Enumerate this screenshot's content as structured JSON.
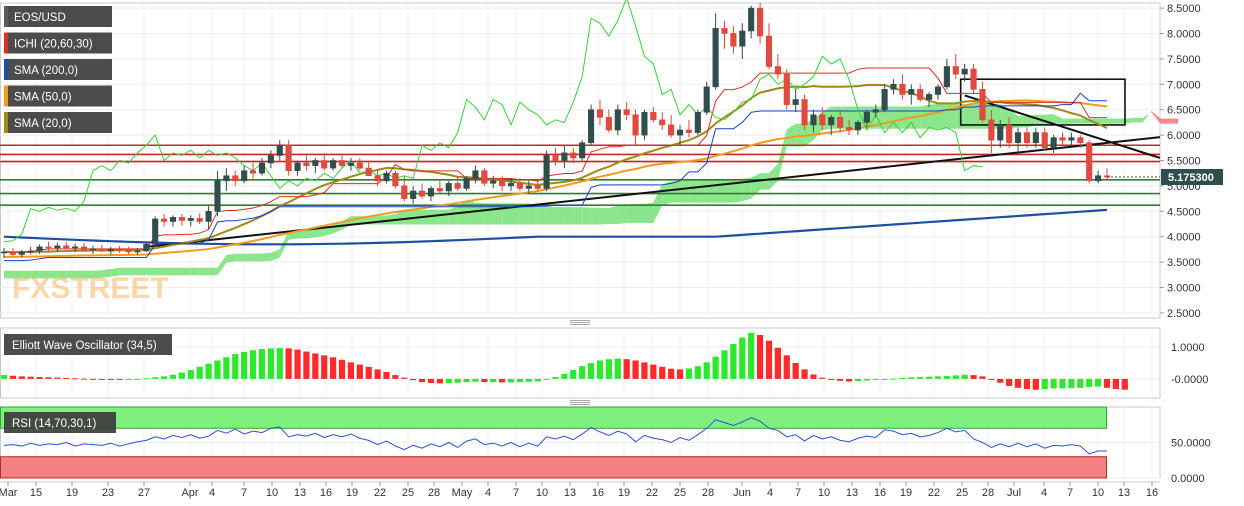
{
  "chart_data": {
    "type": "candlestick",
    "symbol": "EOS/USD",
    "x_ticks": [
      "Mar",
      "15",
      "19",
      "23",
      "27",
      "Apr",
      "4",
      "7",
      "10",
      "13",
      "16",
      "19",
      "22",
      "25",
      "28",
      "May",
      "4",
      "7",
      "10",
      "13",
      "16",
      "19",
      "22",
      "25",
      "28",
      "Jun",
      "4",
      "7",
      "10",
      "13",
      "16",
      "19",
      "22",
      "25",
      "28",
      "Jul",
      "4",
      "7",
      "10",
      "13",
      "16"
    ],
    "price_axis": {
      "ylim": [
        2.4,
        8.6
      ],
      "ticks": [
        "8.5000",
        "8.0000",
        "7.5000",
        "7.0000",
        "6.5000",
        "6.0000",
        "5.5000",
        "5.0000",
        "4.5000",
        "4.0000",
        "3.5000",
        "3.0000",
        "2.5000"
      ],
      "current_price": "5.175300"
    },
    "legend": [
      {
        "label": "EOS/USD",
        "color": "#5a5a5a"
      },
      {
        "label": "ICHI (20,60,30)",
        "color": "#d93025"
      },
      {
        "label": "SMA (200,0)",
        "color": "#1f4fa0"
      },
      {
        "label": "SMA (50,0)",
        "color": "#f39a1e"
      },
      {
        "label": "SMA (20,0)",
        "color": "#a08a16"
      }
    ],
    "watermark": "FXSTREET",
    "candles_ohlc": [
      [
        3.68,
        3.78,
        3.58,
        3.7
      ],
      [
        3.7,
        3.78,
        3.62,
        3.65
      ],
      [
        3.65,
        3.74,
        3.6,
        3.7
      ],
      [
        3.7,
        3.8,
        3.65,
        3.72
      ],
      [
        3.72,
        3.85,
        3.66,
        3.8
      ],
      [
        3.8,
        3.9,
        3.72,
        3.78
      ],
      [
        3.78,
        3.88,
        3.7,
        3.82
      ],
      [
        3.82,
        3.9,
        3.76,
        3.78
      ],
      [
        3.78,
        3.86,
        3.7,
        3.8
      ],
      [
        3.8,
        3.88,
        3.72,
        3.74
      ],
      [
        3.74,
        3.82,
        3.66,
        3.76
      ],
      [
        3.76,
        3.84,
        3.7,
        3.72
      ],
      [
        3.72,
        3.8,
        3.65,
        3.75
      ],
      [
        3.75,
        3.82,
        3.68,
        3.74
      ],
      [
        3.74,
        3.8,
        3.66,
        3.7
      ],
      [
        3.7,
        3.78,
        3.64,
        3.72
      ],
      [
        3.72,
        3.9,
        3.7,
        3.85
      ],
      [
        3.85,
        4.4,
        3.8,
        4.35
      ],
      [
        4.35,
        4.45,
        4.2,
        4.3
      ],
      [
        4.3,
        4.42,
        4.2,
        4.38
      ],
      [
        4.38,
        4.45,
        4.22,
        4.32
      ],
      [
        4.32,
        4.42,
        4.2,
        4.36
      ],
      [
        4.36,
        4.46,
        4.25,
        4.3
      ],
      [
        4.3,
        4.6,
        4.15,
        4.5
      ],
      [
        4.5,
        5.3,
        4.4,
        5.1
      ],
      [
        5.1,
        5.35,
        4.9,
        5.2
      ],
      [
        5.2,
        5.3,
        5.0,
        5.1
      ],
      [
        5.1,
        5.4,
        5.05,
        5.3
      ],
      [
        5.3,
        5.45,
        5.1,
        5.25
      ],
      [
        5.25,
        5.55,
        5.2,
        5.45
      ],
      [
        5.45,
        5.7,
        5.35,
        5.6
      ],
      [
        5.6,
        5.9,
        5.5,
        5.8
      ],
      [
        5.8,
        5.9,
        5.2,
        5.3
      ],
      [
        5.3,
        5.5,
        5.2,
        5.45
      ],
      [
        5.45,
        5.6,
        5.3,
        5.4
      ],
      [
        5.4,
        5.55,
        5.25,
        5.5
      ],
      [
        5.5,
        5.6,
        5.3,
        5.35
      ],
      [
        5.35,
        5.55,
        5.3,
        5.5
      ],
      [
        5.5,
        5.6,
        5.35,
        5.4
      ],
      [
        5.4,
        5.55,
        5.3,
        5.45
      ],
      [
        5.45,
        5.55,
        5.3,
        5.35
      ],
      [
        5.35,
        5.5,
        5.2,
        5.2
      ],
      [
        5.2,
        5.3,
        5.0,
        5.1
      ],
      [
        5.1,
        5.3,
        5.05,
        5.25
      ],
      [
        5.25,
        5.3,
        4.95,
        5.0
      ],
      [
        5.0,
        5.2,
        4.7,
        4.75
      ],
      [
        4.75,
        5.0,
        4.65,
        4.9
      ],
      [
        4.9,
        5.05,
        4.75,
        4.8
      ],
      [
        4.8,
        5.0,
        4.7,
        4.95
      ],
      [
        4.95,
        5.1,
        4.85,
        4.9
      ],
      [
        4.9,
        5.1,
        4.8,
        5.05
      ],
      [
        5.05,
        5.2,
        4.9,
        4.95
      ],
      [
        4.95,
        5.2,
        4.9,
        5.15
      ],
      [
        5.15,
        5.4,
        5.05,
        5.3
      ],
      [
        5.3,
        5.35,
        5.0,
        5.05
      ],
      [
        5.05,
        5.2,
        4.95,
        5.1
      ],
      [
        5.1,
        5.2,
        4.9,
        5.0
      ],
      [
        5.0,
        5.15,
        4.9,
        5.05
      ],
      [
        5.05,
        5.15,
        4.9,
        4.95
      ],
      [
        4.95,
        5.1,
        4.85,
        5.0
      ],
      [
        5.0,
        5.1,
        4.9,
        4.95
      ],
      [
        4.95,
        5.7,
        4.9,
        5.6
      ],
      [
        5.6,
        5.75,
        5.4,
        5.5
      ],
      [
        5.5,
        5.8,
        5.35,
        5.65
      ],
      [
        5.65,
        5.75,
        5.45,
        5.55
      ],
      [
        5.55,
        5.9,
        5.5,
        5.85
      ],
      [
        5.85,
        6.6,
        5.8,
        6.5
      ],
      [
        6.5,
        6.7,
        6.2,
        6.35
      ],
      [
        6.35,
        6.5,
        6.05,
        6.1
      ],
      [
        6.1,
        6.6,
        6.0,
        6.5
      ],
      [
        6.5,
        6.65,
        6.3,
        6.4
      ],
      [
        6.4,
        6.5,
        5.8,
        6.0
      ],
      [
        6.0,
        6.5,
        5.9,
        6.45
      ],
      [
        6.45,
        6.55,
        6.25,
        6.3
      ],
      [
        6.3,
        6.45,
        6.1,
        6.2
      ],
      [
        6.2,
        6.4,
        5.95,
        6.0
      ],
      [
        6.0,
        6.2,
        5.8,
        6.1
      ],
      [
        6.1,
        6.3,
        5.95,
        6.05
      ],
      [
        6.05,
        6.5,
        6.0,
        6.45
      ],
      [
        6.45,
        7.05,
        6.4,
        6.95
      ],
      [
        6.95,
        8.4,
        6.9,
        8.1
      ],
      [
        8.1,
        8.25,
        7.7,
        8.0
      ],
      [
        8.0,
        8.15,
        7.6,
        7.75
      ],
      [
        7.75,
        8.2,
        7.5,
        8.05
      ],
      [
        8.05,
        8.55,
        7.9,
        8.5
      ],
      [
        8.5,
        8.6,
        7.8,
        7.95
      ],
      [
        7.95,
        8.2,
        7.3,
        7.35
      ],
      [
        7.35,
        7.6,
        7.1,
        7.2
      ],
      [
        7.2,
        7.3,
        6.5,
        6.6
      ],
      [
        6.6,
        6.9,
        6.45,
        6.7
      ],
      [
        6.7,
        6.8,
        6.1,
        6.2
      ],
      [
        6.2,
        6.5,
        6.05,
        6.4
      ],
      [
        6.4,
        6.55,
        6.1,
        6.2
      ],
      [
        6.2,
        6.4,
        6.0,
        6.35
      ],
      [
        6.35,
        6.5,
        6.05,
        6.15
      ],
      [
        6.15,
        6.3,
        6.0,
        6.1
      ],
      [
        6.1,
        6.3,
        6.0,
        6.25
      ],
      [
        6.25,
        6.5,
        6.15,
        6.45
      ],
      [
        6.45,
        6.6,
        6.35,
        6.5
      ],
      [
        6.5,
        7.0,
        6.45,
        6.9
      ],
      [
        6.9,
        7.1,
        6.8,
        7.0
      ],
      [
        7.0,
        7.2,
        6.7,
        6.8
      ],
      [
        6.8,
        7.0,
        6.6,
        6.9
      ],
      [
        6.9,
        7.0,
        6.65,
        6.7
      ],
      [
        6.7,
        6.85,
        6.55,
        6.8
      ],
      [
        6.8,
        7.0,
        6.7,
        6.95
      ],
      [
        6.95,
        7.5,
        6.9,
        7.35
      ],
      [
        7.35,
        7.6,
        7.1,
        7.2
      ],
      [
        7.2,
        7.4,
        7.05,
        7.3
      ],
      [
        7.3,
        7.4,
        6.8,
        6.9
      ],
      [
        6.9,
        7.05,
        6.25,
        6.3
      ],
      [
        6.3,
        6.5,
        5.65,
        5.9
      ],
      [
        5.9,
        6.3,
        5.75,
        6.2
      ],
      [
        6.2,
        6.35,
        5.75,
        5.85
      ],
      [
        5.85,
        6.15,
        5.65,
        6.05
      ],
      [
        6.05,
        6.15,
        5.75,
        5.85
      ],
      [
        5.85,
        6.15,
        5.75,
        6.05
      ],
      [
        6.05,
        6.15,
        5.7,
        5.75
      ],
      [
        5.75,
        6.0,
        5.65,
        5.95
      ],
      [
        5.95,
        6.05,
        5.8,
        5.9
      ],
      [
        5.9,
        6.05,
        5.8,
        5.95
      ],
      [
        5.95,
        6.0,
        5.75,
        5.85
      ],
      [
        5.85,
        5.9,
        5.05,
        5.1
      ],
      [
        5.1,
        5.3,
        5.05,
        5.2
      ],
      [
        5.2,
        5.35,
        5.1,
        5.175
      ]
    ],
    "horizontal_levels": [
      5.8,
      5.62,
      5.48,
      5.12,
      4.85,
      4.62
    ],
    "indicators": [
      {
        "name": "Elliott Wave Oscillator (34,5)",
        "ticks": [
          "1.0000",
          "-0.0000"
        ],
        "ylim": [
          -0.6,
          1.6
        ],
        "values": [
          0.12,
          0.1,
          0.08,
          0.07,
          0.06,
          0.05,
          0.04,
          0.03,
          0.02,
          0.01,
          0.0,
          -0.01,
          -0.02,
          -0.03,
          -0.02,
          -0.01,
          0.02,
          0.05,
          0.08,
          0.13,
          0.2,
          0.28,
          0.38,
          0.48,
          0.58,
          0.68,
          0.78,
          0.85,
          0.9,
          0.94,
          0.96,
          0.97,
          0.96,
          0.92,
          0.86,
          0.8,
          0.74,
          0.68,
          0.6,
          0.52,
          0.45,
          0.38,
          0.3,
          0.22,
          0.12,
          0.04,
          -0.04,
          -0.1,
          -0.13,
          -0.14,
          -0.13,
          -0.12,
          -0.1,
          -0.09,
          -0.1,
          -0.1,
          -0.11,
          -0.11,
          -0.1,
          -0.09,
          -0.08,
          -0.02,
          0.06,
          0.16,
          0.28,
          0.4,
          0.5,
          0.58,
          0.62,
          0.64,
          0.62,
          0.58,
          0.52,
          0.45,
          0.38,
          0.32,
          0.3,
          0.33,
          0.4,
          0.52,
          0.7,
          0.9,
          1.1,
          1.3,
          1.45,
          1.38,
          1.2,
          0.98,
          0.74,
          0.5,
          0.3,
          0.14,
          0.04,
          -0.02,
          -0.06,
          -0.08,
          -0.07,
          -0.05,
          -0.03,
          -0.01,
          0.01,
          0.03,
          0.05,
          0.06,
          0.07,
          0.08,
          0.09,
          0.11,
          0.13,
          0.12,
          0.08,
          0.0,
          -0.12,
          -0.22,
          -0.28,
          -0.32,
          -0.34,
          -0.32,
          -0.3,
          -0.3,
          -0.29,
          -0.28,
          -0.25,
          -0.24,
          -0.28,
          -0.32,
          -0.34
        ]
      },
      {
        "name": "RSI (14,70,30,1)",
        "ticks": [
          "50.0000",
          "0.0000"
        ],
        "ylim": [
          0,
          100
        ],
        "overbought": 70,
        "oversold": 30,
        "values": [
          46,
          47,
          45,
          49,
          46,
          48,
          47,
          50,
          45,
          48,
          47,
          46,
          49,
          45,
          48,
          51,
          53,
          58,
          55,
          60,
          57,
          61,
          56,
          59,
          67,
          63,
          69,
          62,
          66,
          64,
          70,
          72,
          58,
          61,
          59,
          63,
          57,
          61,
          58,
          62,
          56,
          53,
          47,
          52,
          45,
          40,
          46,
          42,
          48,
          44,
          50,
          43,
          52,
          55,
          47,
          49,
          45,
          50,
          44,
          49,
          45,
          58,
          55,
          59,
          54,
          62,
          71,
          65,
          60,
          66,
          62,
          51,
          60,
          56,
          54,
          50,
          57,
          53,
          61,
          70,
          82,
          78,
          74,
          79,
          85,
          80,
          70,
          67,
          58,
          61,
          52,
          60,
          55,
          58,
          53,
          51,
          56,
          59,
          57,
          68,
          66,
          61,
          63,
          58,
          60,
          64,
          70,
          65,
          67,
          55,
          50,
          43,
          48,
          44,
          49,
          44,
          48,
          42,
          46,
          45,
          47,
          45,
          34,
          38,
          38
        ]
      }
    ]
  }
}
